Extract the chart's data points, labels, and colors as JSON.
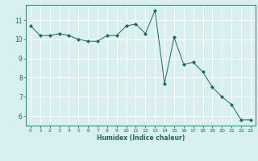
{
  "x": [
    0,
    1,
    2,
    3,
    4,
    5,
    6,
    7,
    8,
    9,
    10,
    11,
    12,
    13,
    14,
    15,
    16,
    17,
    18,
    19,
    20,
    21,
    22,
    23
  ],
  "y": [
    10.7,
    10.2,
    10.2,
    10.3,
    10.2,
    10.0,
    9.9,
    9.9,
    10.2,
    10.2,
    10.7,
    10.8,
    10.3,
    11.5,
    7.7,
    10.1,
    8.7,
    8.8,
    8.3,
    7.5,
    7.0,
    6.6,
    5.8,
    5.8
  ],
  "line_color": "#1a6b5a",
  "marker": "D",
  "marker_size": 2.0,
  "bg_color": "#d8f0f0",
  "grid_color": "#ffffff",
  "xlabel": "Humidex (Indice chaleur)",
  "xlim": [
    -0.5,
    23.5
  ],
  "ylim": [
    5.5,
    11.8
  ],
  "yticks": [
    6,
    7,
    8,
    9,
    10,
    11
  ],
  "xticks": [
    0,
    1,
    2,
    3,
    4,
    5,
    6,
    7,
    8,
    9,
    10,
    11,
    12,
    13,
    14,
    15,
    16,
    17,
    18,
    19,
    20,
    21,
    22,
    23
  ]
}
